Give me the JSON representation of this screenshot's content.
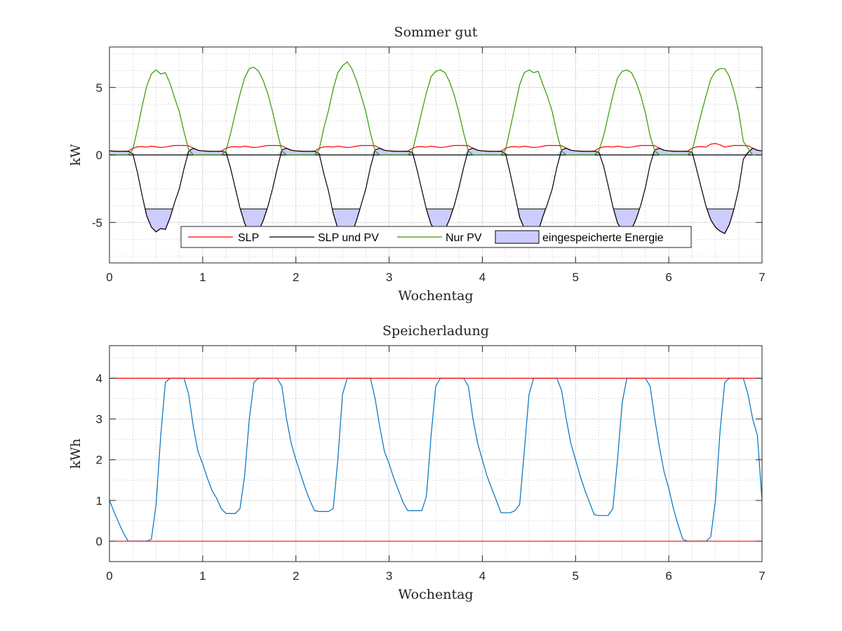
{
  "chart_data": [
    {
      "type": "line",
      "title": "Sommer gut",
      "xlabel": "Wochentag",
      "ylabel": "kW",
      "xlim": [
        0,
        7
      ],
      "ylim": [
        -8,
        8
      ],
      "xticks": [
        0,
        1,
        2,
        3,
        4,
        5,
        6,
        7
      ],
      "yticks": [
        -5,
        0,
        5
      ],
      "grid": true,
      "minor_grid": true,
      "legend_position": "bottom-center",
      "x_start": 0,
      "x_step": 0.05,
      "storage_threshold_kw": -4,
      "series": [
        {
          "name": "SLP",
          "color": "#ff0000",
          "values": [
            0.3,
            0.28,
            0.27,
            0.27,
            0.28,
            0.5,
            0.6,
            0.62,
            0.58,
            0.65,
            0.6,
            0.55,
            0.58,
            0.65,
            0.7,
            0.7,
            0.7,
            0.68,
            0.5,
            0.35,
            0.3,
            0.28,
            0.27,
            0.27,
            0.28,
            0.5,
            0.6,
            0.62,
            0.58,
            0.65,
            0.6,
            0.55,
            0.58,
            0.65,
            0.7,
            0.7,
            0.7,
            0.68,
            0.5,
            0.35,
            0.3,
            0.28,
            0.27,
            0.27,
            0.28,
            0.5,
            0.6,
            0.62,
            0.58,
            0.65,
            0.6,
            0.55,
            0.58,
            0.65,
            0.7,
            0.7,
            0.7,
            0.68,
            0.5,
            0.35,
            0.3,
            0.28,
            0.27,
            0.27,
            0.28,
            0.5,
            0.6,
            0.62,
            0.58,
            0.65,
            0.6,
            0.55,
            0.58,
            0.65,
            0.7,
            0.7,
            0.7,
            0.68,
            0.5,
            0.35,
            0.3,
            0.28,
            0.27,
            0.27,
            0.28,
            0.5,
            0.6,
            0.62,
            0.58,
            0.65,
            0.6,
            0.55,
            0.58,
            0.65,
            0.7,
            0.7,
            0.7,
            0.68,
            0.5,
            0.35,
            0.3,
            0.28,
            0.27,
            0.27,
            0.28,
            0.5,
            0.6,
            0.62,
            0.58,
            0.65,
            0.6,
            0.55,
            0.58,
            0.65,
            0.7,
            0.7,
            0.7,
            0.68,
            0.5,
            0.35,
            0.3,
            0.28,
            0.27,
            0.27,
            0.28,
            0.5,
            0.6,
            0.62,
            0.58,
            0.8,
            0.85,
            0.75,
            0.58,
            0.65,
            0.7,
            0.7,
            0.7,
            0.68,
            0.5,
            0.35,
            0.3
          ]
        },
        {
          "name": "SLP und PV",
          "color": "#000000",
          "values": [
            0.3,
            0.28,
            0.27,
            0.27,
            0.28,
            0.1,
            -1.3,
            -2.98,
            -4.52,
            -5.35,
            -5.7,
            -5.45,
            -5.52,
            -4.65,
            -3.5,
            -2.5,
            -1.0,
            0.28,
            0.5,
            0.35,
            0.3,
            0.28,
            0.27,
            0.27,
            0.28,
            0.2,
            -1.0,
            -2.48,
            -3.92,
            -5.05,
            -5.8,
            -5.95,
            -5.62,
            -4.85,
            -3.8,
            -2.5,
            -1.0,
            0.38,
            0.5,
            0.35,
            0.3,
            0.28,
            0.27,
            0.27,
            0.28,
            0.1,
            -1.4,
            -2.68,
            -4.32,
            -5.45,
            -6.0,
            -6.35,
            -5.82,
            -4.85,
            -3.7,
            -2.5,
            -0.9,
            0.38,
            0.5,
            0.35,
            0.3,
            0.28,
            0.27,
            0.27,
            0.28,
            0.2,
            -1.1,
            -2.58,
            -4.02,
            -5.15,
            -5.6,
            -5.75,
            -5.52,
            -4.75,
            -3.7,
            -2.4,
            -0.9,
            0.38,
            0.5,
            0.35,
            0.3,
            0.28,
            0.27,
            0.27,
            0.28,
            0.1,
            -1.4,
            -2.98,
            -4.62,
            -5.45,
            -5.7,
            -5.55,
            -5.62,
            -4.55,
            -3.6,
            -2.5,
            -0.9,
            0.38,
            0.5,
            0.35,
            0.3,
            0.28,
            0.27,
            0.27,
            0.28,
            0.2,
            -0.8,
            -2.28,
            -3.82,
            -5.05,
            -5.6,
            -5.75,
            -5.52,
            -4.75,
            -3.7,
            -2.4,
            -0.7,
            0.38,
            0.5,
            0.35,
            0.3,
            0.28,
            0.27,
            0.27,
            0.28,
            0.2,
            -1.1,
            -2.48,
            -3.82,
            -4.8,
            -5.35,
            -5.65,
            -5.82,
            -5.15,
            -4.0,
            -2.5,
            -0.3,
            0.18,
            0.5,
            0.35,
            0.3
          ]
        },
        {
          "name": "Nur PV",
          "color": "#339900",
          "values": [
            0,
            0,
            0,
            0,
            0,
            0.4,
            1.9,
            3.6,
            5.1,
            6.0,
            6.3,
            6.0,
            6.1,
            5.3,
            4.2,
            3.2,
            1.7,
            0.4,
            0,
            0,
            0,
            0,
            0,
            0,
            0,
            0.3,
            1.6,
            3.1,
            4.5,
            5.7,
            6.4,
            6.5,
            6.2,
            5.5,
            4.5,
            3.2,
            1.7,
            0.3,
            0,
            0,
            0,
            0,
            0,
            0,
            0,
            0.4,
            2.0,
            3.3,
            4.9,
            6.1,
            6.6,
            6.9,
            6.4,
            5.5,
            4.4,
            3.2,
            1.6,
            0.3,
            0,
            0,
            0,
            0,
            0,
            0,
            0,
            0.3,
            1.7,
            3.2,
            4.6,
            5.8,
            6.2,
            6.3,
            6.1,
            5.4,
            4.4,
            3.1,
            1.6,
            0.3,
            0,
            0,
            0,
            0,
            0,
            0,
            0,
            0.4,
            2.0,
            3.6,
            5.2,
            6.1,
            6.3,
            6.1,
            6.2,
            5.2,
            4.3,
            3.2,
            1.6,
            0.3,
            0,
            0,
            0,
            0,
            0,
            0,
            0,
            0.3,
            1.4,
            2.9,
            4.4,
            5.7,
            6.2,
            6.3,
            6.1,
            5.4,
            4.4,
            3.1,
            1.4,
            0.3,
            0,
            0,
            0,
            0,
            0,
            0,
            0,
            0.3,
            1.7,
            3.1,
            4.4,
            5.6,
            6.2,
            6.4,
            6.4,
            5.8,
            4.7,
            3.2,
            1.0,
            0.5,
            0,
            0,
            0
          ]
        },
        {
          "name": "eingespeicherte Energie",
          "color": "#ccccff",
          "type": "area"
        }
      ]
    },
    {
      "type": "line",
      "title": "Speicherladung",
      "xlabel": "Wochentag",
      "ylabel": "kWh",
      "xlim": [
        0,
        7
      ],
      "ylim": [
        -0.5,
        4.8
      ],
      "xticks": [
        0,
        1,
        2,
        3,
        4,
        5,
        6,
        7
      ],
      "yticks": [
        0,
        1,
        2,
        3,
        4
      ],
      "grid": true,
      "minor_grid": true,
      "limits": [
        {
          "value": 0,
          "color": "#ff0000"
        },
        {
          "value": 4,
          "color": "#ff0000"
        }
      ],
      "x_start": 0,
      "x_step": 0.05,
      "series": [
        {
          "color": "#0072bd",
          "values": [
            1.0,
            0.72,
            0.45,
            0.2,
            0,
            0,
            0,
            0,
            0,
            0.05,
            0.9,
            2.6,
            3.9,
            4,
            4,
            4,
            4,
            3.6,
            2.8,
            2.2,
            1.9,
            1.55,
            1.25,
            1.05,
            0.8,
            0.68,
            0.68,
            0.68,
            0.8,
            1.6,
            3.0,
            3.9,
            4,
            4,
            4,
            4,
            4,
            3.8,
            3.0,
            2.4,
            2.0,
            1.65,
            1.3,
            1.0,
            0.75,
            0.73,
            0.73,
            0.73,
            0.8,
            2.0,
            3.6,
            4,
            4,
            4,
            4,
            4,
            4,
            3.5,
            2.8,
            2.2,
            1.9,
            1.55,
            1.25,
            0.95,
            0.75,
            0.75,
            0.75,
            0.75,
            1.1,
            2.6,
            3.8,
            4,
            4,
            4,
            4,
            4,
            4,
            3.8,
            3.0,
            2.4,
            2.0,
            1.6,
            1.3,
            1.0,
            0.7,
            0.7,
            0.7,
            0.75,
            0.9,
            2.2,
            3.6,
            4,
            4,
            4,
            4,
            4,
            4,
            3.7,
            3.0,
            2.4,
            2.0,
            1.6,
            1.25,
            0.95,
            0.65,
            0.63,
            0.63,
            0.63,
            0.8,
            2.0,
            3.4,
            4,
            4,
            4,
            4,
            4,
            3.8,
            3.0,
            2.3,
            1.7,
            1.3,
            0.8,
            0.4,
            0.05,
            0,
            0,
            0,
            0,
            0,
            0.1,
            1.0,
            2.7,
            3.9,
            4,
            4,
            4,
            4,
            3.6,
            3.0,
            2.6,
            1.0
          ]
        }
      ]
    }
  ]
}
